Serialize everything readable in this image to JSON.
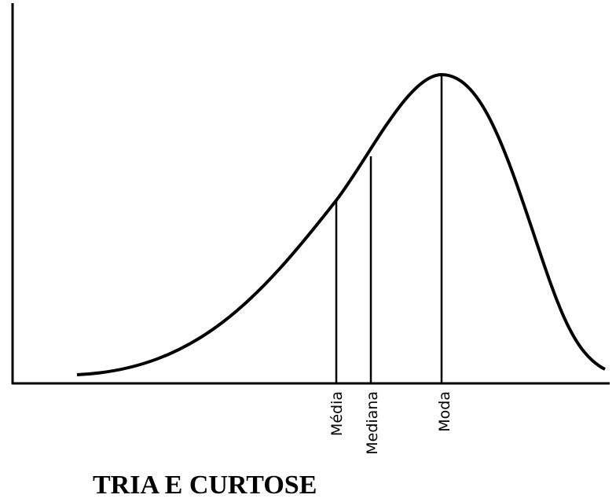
{
  "labels": [
    "Média",
    "Mediana",
    "Moda"
  ],
  "caption": "TRIA E CURTOSE"
}
